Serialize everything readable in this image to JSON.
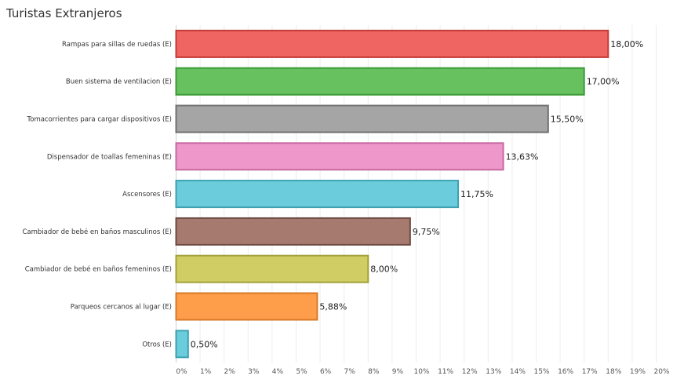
{
  "chart_data": {
    "type": "bar",
    "orientation": "horizontal",
    "title": "Turistas Extranjeros",
    "categories": [
      "Rampas para sillas de ruedas (E)",
      "Buen sistema de ventilacion (E)",
      "Tomacorrientes para cargar dispositivos (E)",
      "Dispensador de toallas femeninas (E)",
      "Ascensores (E)",
      "Cambiador de bebé en baños masculinos (E)",
      "Cambiador de bebé en baños femeninos (E)",
      "Parqueos cercanos al lugar (E)",
      "Otros (E)"
    ],
    "values": [
      18.0,
      17.0,
      15.5,
      13.63,
      11.75,
      9.75,
      8.0,
      5.88,
      0.5
    ],
    "data_labels": [
      "18,00%",
      "17,00%",
      "15,50%",
      "13,63%",
      "11,75%",
      "9,75%",
      "8,00%",
      "5,88%",
      "0,50%"
    ],
    "colors": [
      "#ef6561",
      "#67c15e",
      "#a5a5a5",
      "#ee97ca",
      "#6bccdb",
      "#a77a6f",
      "#cfcd63",
      "#fe9e4a",
      "#6bccdb"
    ],
    "border_colors": [
      "#c43a37",
      "#3c9a36",
      "#717171",
      "#c76aa1",
      "#3ea1b2",
      "#6e4a42",
      "#a3a13a",
      "#d87a2a",
      "#3ea1b2"
    ],
    "xlim": [
      0,
      20
    ],
    "x_ticks": [
      "0%",
      "1%",
      "2%",
      "3%",
      "4%",
      "5%",
      "6%",
      "7%",
      "8%",
      "9%",
      "10%",
      "11%",
      "12%",
      "13%",
      "14%",
      "15%",
      "16%",
      "17%",
      "18%",
      "19%",
      "20%"
    ],
    "grid": "vertical"
  }
}
